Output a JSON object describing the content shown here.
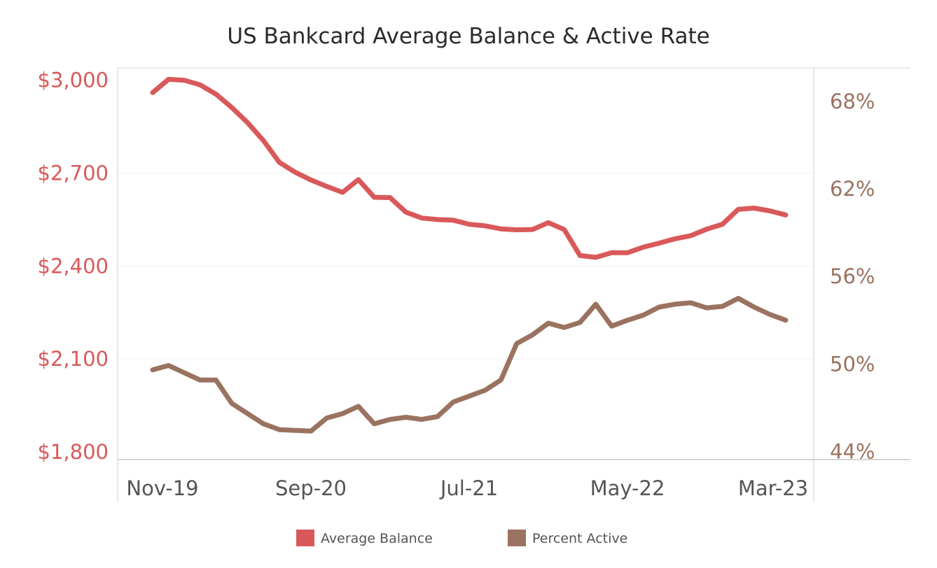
{
  "chart_data": {
    "type": "line",
    "title": "US Bankcard Average Balance & Active Rate",
    "x": [
      "2019-11",
      "2019-12",
      "2020-01",
      "2020-02",
      "2020-03",
      "2020-04",
      "2020-05",
      "2020-06",
      "2020-07",
      "2020-08",
      "2020-09",
      "2020-10",
      "2020-11",
      "2020-12",
      "2021-01",
      "2021-02",
      "2021-03",
      "2021-04",
      "2021-05",
      "2021-06",
      "2021-07",
      "2021-08",
      "2021-09",
      "2021-10",
      "2021-11",
      "2021-12",
      "2022-01",
      "2022-02",
      "2022-03",
      "2022-04",
      "2022-05",
      "2022-06",
      "2022-07",
      "2022-08",
      "2022-09",
      "2022-10",
      "2022-11",
      "2022-12",
      "2023-01",
      "2023-02",
      "2023-03"
    ],
    "x_ticks": [
      "Nov-19",
      "Sep-20",
      "Jul-21",
      "May-22",
      "Mar-23"
    ],
    "x_tick_positions": [
      "2019-11",
      "2020-09",
      "2021-07",
      "2022-05",
      "2023-03"
    ],
    "y_left": {
      "ticks": [
        "$3,000",
        "$2,700",
        "$2,400",
        "$2,100",
        "$1,800"
      ],
      "tick_values": [
        3000,
        2700,
        2400,
        2100,
        1800
      ],
      "ylim": [
        1775,
        3040
      ]
    },
    "y_right": {
      "ticks": [
        "68%",
        "62%",
        "56%",
        "50%",
        "44%"
      ],
      "tick_values": [
        68,
        62,
        56,
        50,
        44
      ],
      "ylim": [
        43.45,
        70.3
      ]
    },
    "series": [
      {
        "name": "Average Balance",
        "axis": "left",
        "color": "#d9595a",
        "values": [
          2960,
          3003,
          3000,
          2985,
          2955,
          2912,
          2863,
          2805,
          2735,
          2703,
          2678,
          2657,
          2638,
          2679,
          2622,
          2621,
          2574,
          2555,
          2550,
          2548,
          2535,
          2530,
          2520,
          2517,
          2518,
          2540,
          2518,
          2434,
          2428,
          2443,
          2443,
          2461,
          2474,
          2488,
          2498,
          2519,
          2535,
          2583,
          2587,
          2578,
          2565
        ]
      },
      {
        "name": "Percent Active",
        "axis": "right",
        "color": "#9a7360",
        "values": [
          49.6,
          49.9,
          49.4,
          48.9,
          48.9,
          47.3,
          46.6,
          45.9,
          45.5,
          45.45,
          45.4,
          46.3,
          46.6,
          47.1,
          45.9,
          46.2,
          46.35,
          46.2,
          46.4,
          47.4,
          47.8,
          48.2,
          48.9,
          51.4,
          52.0,
          52.8,
          52.5,
          52.85,
          54.1,
          52.6,
          53.0,
          53.35,
          53.9,
          54.1,
          54.2,
          53.85,
          53.95,
          54.5,
          53.9,
          53.4,
          53.0
        ]
      }
    ],
    "legend": {
      "position": "bottom",
      "items": [
        {
          "label": "Average Balance",
          "color": "#d9595a"
        },
        {
          "label": "Percent Active",
          "color": "#9a7360"
        }
      ]
    },
    "grid": true,
    "left_axis_color": "#d9595a",
    "right_axis_color": "#9a7360"
  }
}
